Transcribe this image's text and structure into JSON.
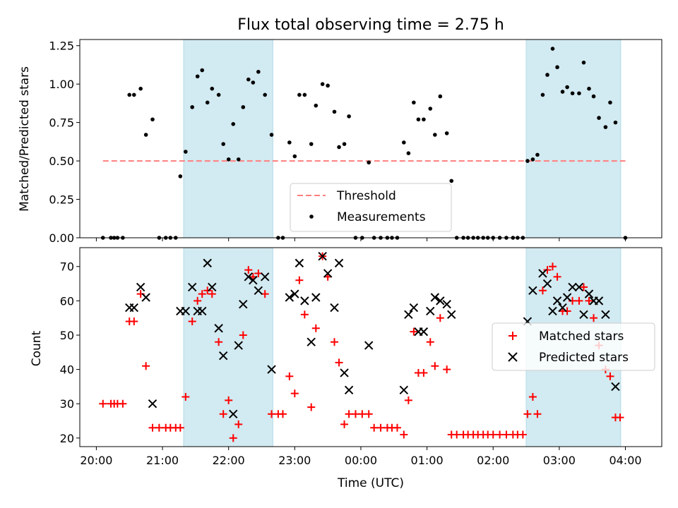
{
  "chart_data": [
    {
      "type": "scatter",
      "title": "Flux total observing time = 2.75 h",
      "ylabel": "Matched/Predicted stars",
      "xlabel": "",
      "ylim": [
        0,
        1.29
      ],
      "xlim": [
        -0.25,
        8.55
      ],
      "yticks": [
        0,
        0.25,
        0.5,
        0.75,
        1.0,
        1.25
      ],
      "ytick_labels": [
        "0.00",
        "0.25",
        "0.50",
        "0.75",
        "1.00",
        "1.25"
      ],
      "xticks": [
        0,
        1,
        2,
        3,
        4,
        5,
        6,
        7,
        8
      ],
      "grid": false,
      "legend_position": "lower-center",
      "threshold": {
        "name": "Threshold",
        "value": 0.5,
        "x_range": [
          0.1,
          8.0
        ],
        "color": "#ff7f7f"
      },
      "shaded_regions": [
        [
          1.32,
          2.67
        ],
        [
          6.5,
          7.93
        ]
      ],
      "shade_color": "#add8e6",
      "series": [
        {
          "name": "Measurements",
          "color": "#000000",
          "points": [
            [
              0.1,
              0
            ],
            [
              0.22,
              0
            ],
            [
              0.27,
              0
            ],
            [
              0.32,
              0
            ],
            [
              0.4,
              0
            ],
            [
              0.5,
              0.93
            ],
            [
              0.57,
              0.93
            ],
            [
              0.67,
              0.97
            ],
            [
              0.75,
              0.67
            ],
            [
              0.85,
              0.77
            ],
            [
              0.95,
              0
            ],
            [
              1.05,
              0
            ],
            [
              1.12,
              0
            ],
            [
              1.2,
              0
            ],
            [
              1.27,
              0.4
            ],
            [
              1.35,
              0.56
            ],
            [
              1.45,
              0.85
            ],
            [
              1.53,
              1.05
            ],
            [
              1.6,
              1.09
            ],
            [
              1.68,
              0.88
            ],
            [
              1.75,
              0.97
            ],
            [
              1.85,
              0.93
            ],
            [
              1.92,
              0.61
            ],
            [
              2.0,
              0.51
            ],
            [
              2.07,
              0.74
            ],
            [
              2.15,
              0.51
            ],
            [
              2.22,
              0.85
            ],
            [
              2.3,
              1.03
            ],
            [
              2.37,
              1.01
            ],
            [
              2.45,
              1.08
            ],
            [
              2.55,
              0.93
            ],
            [
              2.65,
              0.67
            ],
            [
              2.75,
              0
            ],
            [
              2.82,
              0
            ],
            [
              2.92,
              0.62
            ],
            [
              3.0,
              0.53
            ],
            [
              3.07,
              0.93
            ],
            [
              3.15,
              0.93
            ],
            [
              3.25,
              0.61
            ],
            [
              3.32,
              0.86
            ],
            [
              3.42,
              1.0
            ],
            [
              3.5,
              0.99
            ],
            [
              3.6,
              0.82
            ],
            [
              3.67,
              0.59
            ],
            [
              3.75,
              0.61
            ],
            [
              3.82,
              0.79
            ],
            [
              3.92,
              0
            ],
            [
              4.02,
              0
            ],
            [
              4.12,
              0.49
            ],
            [
              4.2,
              0
            ],
            [
              4.3,
              0
            ],
            [
              4.4,
              0
            ],
            [
              4.47,
              0
            ],
            [
              4.55,
              0
            ],
            [
              4.65,
              0.62
            ],
            [
              4.72,
              0.55
            ],
            [
              4.8,
              0.88
            ],
            [
              4.87,
              0.77
            ],
            [
              4.95,
              0.77
            ],
            [
              5.05,
              0.84
            ],
            [
              5.12,
              0.67
            ],
            [
              5.2,
              0.92
            ],
            [
              5.3,
              0.68
            ],
            [
              5.37,
              0.37
            ],
            [
              5.45,
              0
            ],
            [
              5.55,
              0
            ],
            [
              5.62,
              0
            ],
            [
              5.7,
              0
            ],
            [
              5.77,
              0
            ],
            [
              5.85,
              0
            ],
            [
              5.92,
              0
            ],
            [
              6.0,
              0
            ],
            [
              6.1,
              0
            ],
            [
              6.2,
              0
            ],
            [
              6.3,
              0
            ],
            [
              6.37,
              0
            ],
            [
              6.45,
              0
            ],
            [
              6.52,
              0.5
            ],
            [
              6.6,
              0.51
            ],
            [
              6.67,
              0.54
            ],
            [
              6.75,
              0.93
            ],
            [
              6.82,
              1.06
            ],
            [
              6.9,
              1.23
            ],
            [
              6.97,
              1.11
            ],
            [
              7.05,
              0.95
            ],
            [
              7.12,
              0.98
            ],
            [
              7.2,
              0.94
            ],
            [
              7.3,
              0.94
            ],
            [
              7.37,
              1.14
            ],
            [
              7.45,
              0.97
            ],
            [
              7.52,
              0.92
            ],
            [
              7.6,
              0.78
            ],
            [
              7.7,
              0.72
            ],
            [
              7.77,
              0.88
            ],
            [
              7.85,
              0.75
            ],
            [
              8.0,
              0
            ]
          ]
        }
      ]
    },
    {
      "type": "scatter",
      "title": "",
      "ylabel": "Count",
      "xlabel": "Time (UTC)",
      "ylim": [
        17.5,
        75.5
      ],
      "xlim": [
        -0.25,
        8.55
      ],
      "yticks": [
        20,
        30,
        40,
        50,
        60,
        70
      ],
      "ytick_labels": [
        "20",
        "30",
        "40",
        "50",
        "60",
        "70"
      ],
      "xticks": [
        0,
        1,
        2,
        3,
        4,
        5,
        6,
        7,
        8
      ],
      "xtick_labels": [
        "20:00",
        "21:00",
        "22:00",
        "23:00",
        "00:00",
        "01:00",
        "02:00",
        "03:00",
        "04:00"
      ],
      "grid": false,
      "legend_position": "right",
      "shaded_regions": [
        [
          1.32,
          2.67
        ],
        [
          6.5,
          7.93
        ]
      ],
      "shade_color": "#add8e6",
      "series": [
        {
          "name": "Matched stars",
          "color": "#ff0000",
          "marker": "plus",
          "points": [
            [
              0.1,
              30
            ],
            [
              0.22,
              30
            ],
            [
              0.27,
              30
            ],
            [
              0.32,
              30
            ],
            [
              0.4,
              30
            ],
            [
              0.5,
              54
            ],
            [
              0.57,
              54
            ],
            [
              0.67,
              62
            ],
            [
              0.75,
              41
            ],
            [
              0.85,
              23
            ],
            [
              0.95,
              23
            ],
            [
              1.05,
              23
            ],
            [
              1.12,
              23
            ],
            [
              1.2,
              23
            ],
            [
              1.27,
              23
            ],
            [
              1.35,
              32
            ],
            [
              1.45,
              54
            ],
            [
              1.53,
              60
            ],
            [
              1.6,
              62
            ],
            [
              1.68,
              63
            ],
            [
              1.75,
              62
            ],
            [
              1.85,
              48
            ],
            [
              1.92,
              27
            ],
            [
              2.0,
              31
            ],
            [
              2.07,
              20
            ],
            [
              2.15,
              24
            ],
            [
              2.22,
              50
            ],
            [
              2.3,
              69
            ],
            [
              2.37,
              67
            ],
            [
              2.45,
              68
            ],
            [
              2.55,
              62
            ],
            [
              2.65,
              27
            ],
            [
              2.75,
              27
            ],
            [
              2.82,
              27
            ],
            [
              2.92,
              38
            ],
            [
              3.0,
              33
            ],
            [
              3.07,
              66
            ],
            [
              3.15,
              56
            ],
            [
              3.25,
              29
            ],
            [
              3.32,
              52
            ],
            [
              3.42,
              73
            ],
            [
              3.5,
              67
            ],
            [
              3.6,
              48
            ],
            [
              3.67,
              42
            ],
            [
              3.75,
              24
            ],
            [
              3.82,
              27
            ],
            [
              3.92,
              27
            ],
            [
              4.02,
              27
            ],
            [
              4.12,
              27
            ],
            [
              4.2,
              23
            ],
            [
              4.3,
              23
            ],
            [
              4.4,
              23
            ],
            [
              4.47,
              23
            ],
            [
              4.55,
              23
            ],
            [
              4.65,
              21
            ],
            [
              4.72,
              31
            ],
            [
              4.8,
              51
            ],
            [
              4.87,
              39
            ],
            [
              4.95,
              39
            ],
            [
              5.05,
              48
            ],
            [
              5.12,
              41
            ],
            [
              5.2,
              55
            ],
            [
              5.3,
              40
            ],
            [
              5.37,
              21
            ],
            [
              5.45,
              21
            ],
            [
              5.55,
              21
            ],
            [
              5.62,
              21
            ],
            [
              5.7,
              21
            ],
            [
              5.77,
              21
            ],
            [
              5.85,
              21
            ],
            [
              5.92,
              21
            ],
            [
              6.0,
              21
            ],
            [
              6.1,
              21
            ],
            [
              6.2,
              21
            ],
            [
              6.3,
              21
            ],
            [
              6.37,
              21
            ],
            [
              6.45,
              21
            ],
            [
              6.52,
              27
            ],
            [
              6.6,
              32
            ],
            [
              6.67,
              27
            ],
            [
              6.75,
              63
            ],
            [
              6.82,
              69
            ],
            [
              6.9,
              70
            ],
            [
              6.97,
              67
            ],
            [
              7.05,
              57
            ],
            [
              7.12,
              57
            ],
            [
              7.2,
              60
            ],
            [
              7.3,
              60
            ],
            [
              7.37,
              64
            ],
            [
              7.45,
              60
            ],
            [
              7.52,
              55
            ],
            [
              7.6,
              47
            ],
            [
              7.7,
              40
            ],
            [
              7.77,
              38
            ],
            [
              7.85,
              26
            ],
            [
              7.92,
              26
            ]
          ]
        },
        {
          "name": "Predicted stars",
          "color": "#000000",
          "marker": "x",
          "points": [
            [
              0.5,
              58
            ],
            [
              0.57,
              58
            ],
            [
              0.67,
              64
            ],
            [
              0.75,
              61
            ],
            [
              0.85,
              30
            ],
            [
              1.27,
              57
            ],
            [
              1.35,
              57
            ],
            [
              1.45,
              64
            ],
            [
              1.53,
              57
            ],
            [
              1.6,
              57
            ],
            [
              1.68,
              71
            ],
            [
              1.75,
              64
            ],
            [
              1.85,
              52
            ],
            [
              1.92,
              44
            ],
            [
              2.07,
              27
            ],
            [
              2.15,
              47
            ],
            [
              2.22,
              59
            ],
            [
              2.3,
              67
            ],
            [
              2.37,
              66
            ],
            [
              2.45,
              63
            ],
            [
              2.55,
              67
            ],
            [
              2.65,
              40
            ],
            [
              2.92,
              61
            ],
            [
              3.0,
              62
            ],
            [
              3.07,
              71
            ],
            [
              3.15,
              60
            ],
            [
              3.25,
              48
            ],
            [
              3.32,
              61
            ],
            [
              3.42,
              73
            ],
            [
              3.5,
              68
            ],
            [
              3.6,
              58
            ],
            [
              3.67,
              71
            ],
            [
              3.75,
              39
            ],
            [
              3.82,
              34
            ],
            [
              4.12,
              47
            ],
            [
              4.65,
              34
            ],
            [
              4.72,
              56
            ],
            [
              4.8,
              58
            ],
            [
              4.87,
              51
            ],
            [
              4.95,
              51
            ],
            [
              5.05,
              57
            ],
            [
              5.12,
              61
            ],
            [
              5.2,
              60
            ],
            [
              5.3,
              59
            ],
            [
              5.37,
              56
            ],
            [
              6.52,
              54
            ],
            [
              6.6,
              63
            ],
            [
              6.75,
              68
            ],
            [
              6.82,
              65
            ],
            [
              6.9,
              57
            ],
            [
              6.97,
              60
            ],
            [
              7.05,
              58
            ],
            [
              7.12,
              61
            ],
            [
              7.2,
              64
            ],
            [
              7.3,
              64
            ],
            [
              7.37,
              56
            ],
            [
              7.45,
              62
            ],
            [
              7.52,
              60
            ],
            [
              7.6,
              60
            ],
            [
              7.7,
              56
            ],
            [
              7.85,
              35
            ]
          ]
        }
      ]
    }
  ]
}
